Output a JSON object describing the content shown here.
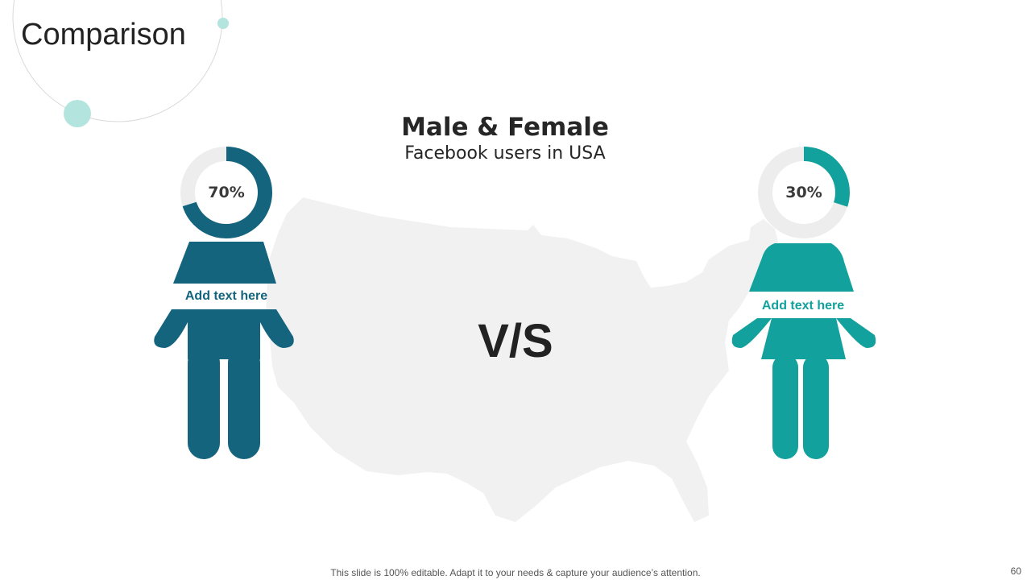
{
  "title": "Comparison",
  "heading": "Male & Female",
  "subheading": "Facebook users in USA",
  "vs_label": "V/S",
  "colors": {
    "male": "#14647e",
    "female": "#12a19c",
    "ring_track": "#ededed",
    "map": "#f1f1f1",
    "accent_light": "#b3e4dd"
  },
  "male": {
    "percent_label": "70%",
    "value": 0.7,
    "text": "Add text here",
    "icon": "male-figure-icon"
  },
  "female": {
    "percent_label": "30%",
    "value": 0.3,
    "text": "Add text here",
    "icon": "female-figure-icon"
  },
  "footer": "This slide is 100% editable. Adapt it to your needs & capture your audience’s attention.",
  "page_number": "60"
}
